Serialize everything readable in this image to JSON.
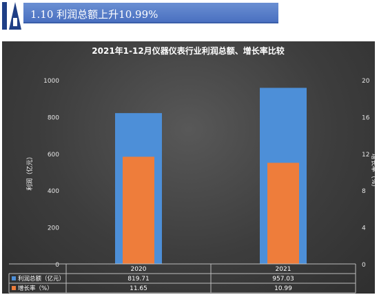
{
  "header": {
    "title": "1.10 利润总额上升10.99%",
    "logo_text": "IA"
  },
  "chart_data": {
    "type": "bar",
    "title": "2021年1-12月仪器仪表行业利润总额、增长率比较",
    "categories": [
      "2020",
      "2021"
    ],
    "series": [
      {
        "name": "利润总额（亿元）",
        "axis": "left",
        "color": "#4d8fd8",
        "values": [
          819.71,
          957.03
        ]
      },
      {
        "name": "增长率（%）",
        "axis": "right",
        "color": "#ee7d3b",
        "values": [
          11.65,
          10.99
        ]
      }
    ],
    "ylabel_left": "利润（亿元）",
    "ylabel_right": "增长率（%）",
    "ylim_left": [
      0,
      1000
    ],
    "yticks_left": [
      "0",
      "200",
      "400",
      "600",
      "800",
      "1000"
    ],
    "ylim_right": [
      0,
      20
    ],
    "yticks_right": [
      "0",
      "4",
      "8",
      "12",
      "16",
      "20"
    ],
    "table": {
      "rows": [
        {
          "label": "利润总额（亿元）",
          "values": [
            "819.71",
            "957.03"
          ]
        },
        {
          "label": "增长率（%）",
          "values": [
            "11.65",
            "10.99"
          ]
        }
      ]
    },
    "grid": false,
    "legend": "data-table"
  }
}
